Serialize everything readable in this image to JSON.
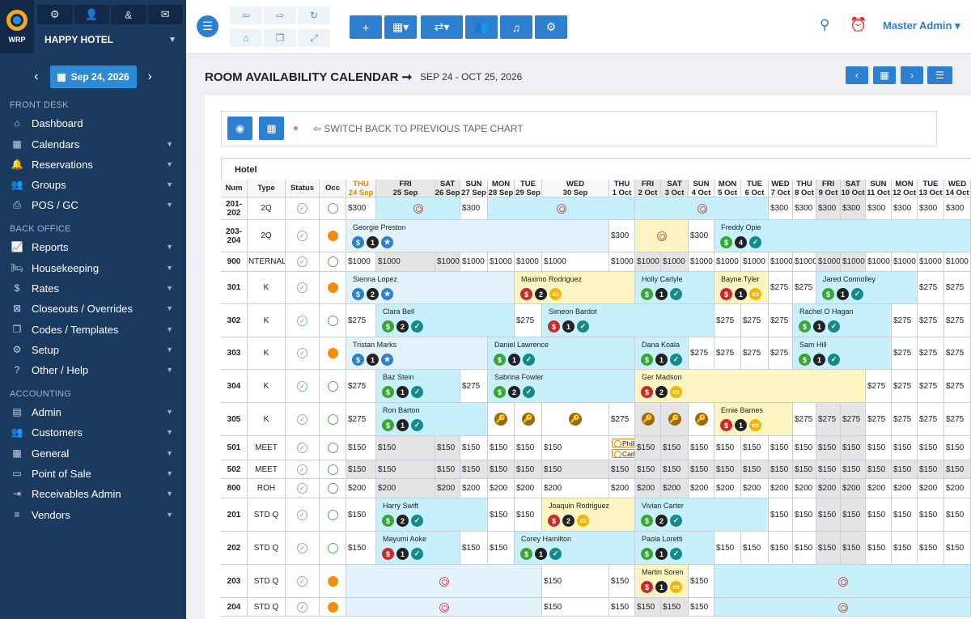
{
  "sidebar": {
    "logo_text": "WRP",
    "hotel": "HAPPY HOTEL",
    "date": "Sep 24, 2026",
    "sections": {
      "front": "FRONT DESK",
      "back": "BACK OFFICE",
      "acct": "ACCOUNTING"
    },
    "items": [
      "Dashboard",
      "Calendars",
      "Reservations",
      "Groups",
      "POS / GC",
      "Reports",
      "Housekeeping",
      "Rates",
      "Closeouts / Overrides",
      "Codes / Templates",
      "Setup",
      "Other / Help",
      "Admin",
      "Customers",
      "General",
      "Point of Sale",
      "Receivables Admin",
      "Vendors"
    ]
  },
  "topbar": {
    "user": "Master Admin"
  },
  "page": {
    "title": "ROOM AVAILABILITY CALENDAR",
    "range": "SEP 24 - OCT 25, 2026",
    "switch_label": "SWITCH BACK TO PREVIOUS TAPE CHART"
  },
  "table": {
    "hotel_label": "Hotel",
    "headers": {
      "num": "Num",
      "type": "Type",
      "status": "Status",
      "occ": "Occ"
    },
    "days": [
      [
        "THU",
        "24 Sep"
      ],
      [
        "FRI",
        "25 Sep"
      ],
      [
        "SAT",
        "26 Sep"
      ],
      [
        "SUN",
        "27 Sep"
      ],
      [
        "MON",
        "28 Sep"
      ],
      [
        "TUE",
        "29 Sep"
      ],
      [
        "WED",
        "30 Sep"
      ],
      [
        "THU",
        "1 Oct"
      ],
      [
        "FRI",
        "2 Oct"
      ],
      [
        "SAT",
        "3 Oct"
      ],
      [
        "SUN",
        "4 Oct"
      ],
      [
        "MON",
        "5 Oct"
      ],
      [
        "TUE",
        "6 Oct"
      ],
      [
        "WED",
        "7 Oct"
      ],
      [
        "THU",
        "8 Oct"
      ],
      [
        "FRI",
        "9 Oct"
      ],
      [
        "SAT",
        "10 Oct"
      ],
      [
        "SUN",
        "11 Oct"
      ],
      [
        "MON",
        "12 Oct"
      ],
      [
        "TUE",
        "13 Oct"
      ],
      [
        "WED",
        "14 Oct"
      ]
    ],
    "rooms": [
      {
        "num": "201-\n202",
        "type": "2Q",
        "occ": false
      },
      {
        "num": "203-\n204",
        "type": "2Q",
        "occ": true
      },
      {
        "num": "900",
        "type": "INTERNAL",
        "occ": false
      },
      {
        "num": "301",
        "type": "K",
        "occ": true
      },
      {
        "num": "302",
        "type": "K",
        "occ": false
      },
      {
        "num": "303",
        "type": "K",
        "occ": true
      },
      {
        "num": "304",
        "type": "K",
        "occ": false
      },
      {
        "num": "305",
        "type": "K",
        "occ": false
      },
      {
        "num": "501",
        "type": "MEET",
        "occ": false
      },
      {
        "num": "502",
        "type": "MEET",
        "occ": false
      },
      {
        "num": "800",
        "type": "ROH",
        "occ": false
      },
      {
        "num": "201",
        "type": "STD Q",
        "occ": false
      },
      {
        "num": "202",
        "type": "STD Q",
        "occ": false
      },
      {
        "num": "203",
        "type": "STD Q",
        "occ": true
      },
      {
        "num": "204",
        "type": "STD Q",
        "occ": true
      }
    ],
    "guests": {
      "g1": "Georgie Preston",
      "g2": "Freddy Opie",
      "g3": "Sienna Lopez",
      "g4": "Maximo Rodriguez",
      "g5": "Holly Carlyle",
      "g6": "Bayne Tyler",
      "g7": "Jared Connolley",
      "g8": "Clara Bell",
      "g9": "Simeon Bardot",
      "g10": "Rachel O Hagan",
      "g11": "Tristan Marks",
      "g12": "Daniel Lawrence",
      "g13": "Dana Koala",
      "g14": "Sam Hill",
      "g15": "Baz Stein",
      "g16": "Sabrina Fowler",
      "g17": "Ger Madson",
      "g18": "Ron Barton",
      "g19": "Ernie Barnes",
      "g20": "Phillip Hargrave",
      "g21": "Carla Smith",
      "g22": "Harry Swift",
      "g23": "Joaquin Rodriguez",
      "g24": "Vivian Carter",
      "g25": "Mayumi Aoke",
      "g26": "Corey Hamilton",
      "g27": "Paola Loretti",
      "g28": "Martin Soren"
    }
  }
}
